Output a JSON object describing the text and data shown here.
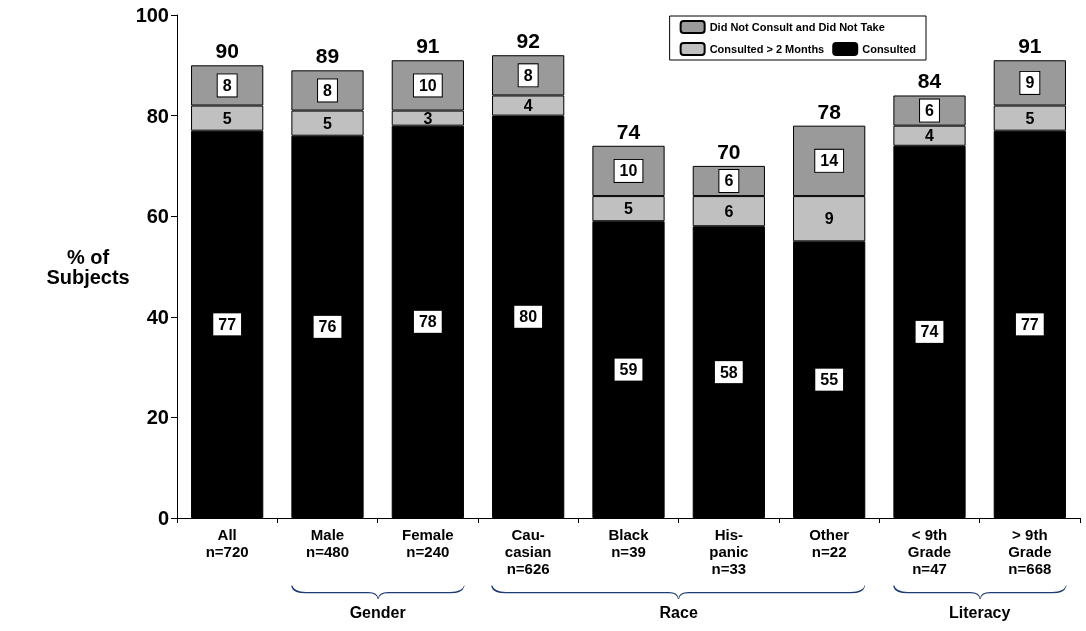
{
  "chart_data": {
    "type": "bar",
    "stacked": true,
    "ylabel": "% of\nSubjects",
    "categories": [
      "All\nn=720",
      "Male\nn=480",
      "Female\nn=240",
      "Cau-\ncasian\nn=626",
      "Black\nn=39",
      "His-\npanic\nn=33",
      "Other\nn=22",
      "< 9th\nGrade\nn=47",
      "> 9th\nGrade\nn=668"
    ],
    "series": [
      {
        "name": "Consulted",
        "color": "#000000",
        "values": [
          77,
          76,
          78,
          80,
          59,
          58,
          55,
          74,
          77
        ]
      },
      {
        "name": "Consulted > 2 Months",
        "color": "#c0c0c0",
        "values": [
          5,
          5,
          3,
          4,
          5,
          6,
          9,
          4,
          5
        ]
      },
      {
        "name": "Did Not Consult and Did Not Take",
        "color": "#9a9a9a",
        "values": [
          8,
          8,
          10,
          8,
          10,
          6,
          14,
          6,
          9
        ]
      }
    ],
    "totals": [
      "90",
      "89",
      "91",
      "92",
      "74",
      "70",
      "78",
      "84",
      "91"
    ],
    "data_labels": true,
    "ylim": [
      0,
      100
    ],
    "yticks": [
      0,
      20,
      40,
      60,
      80,
      100
    ],
    "grid": false,
    "legend": "top right",
    "annotations": [
      "Gender",
      "Race",
      "Literacy"
    ]
  }
}
